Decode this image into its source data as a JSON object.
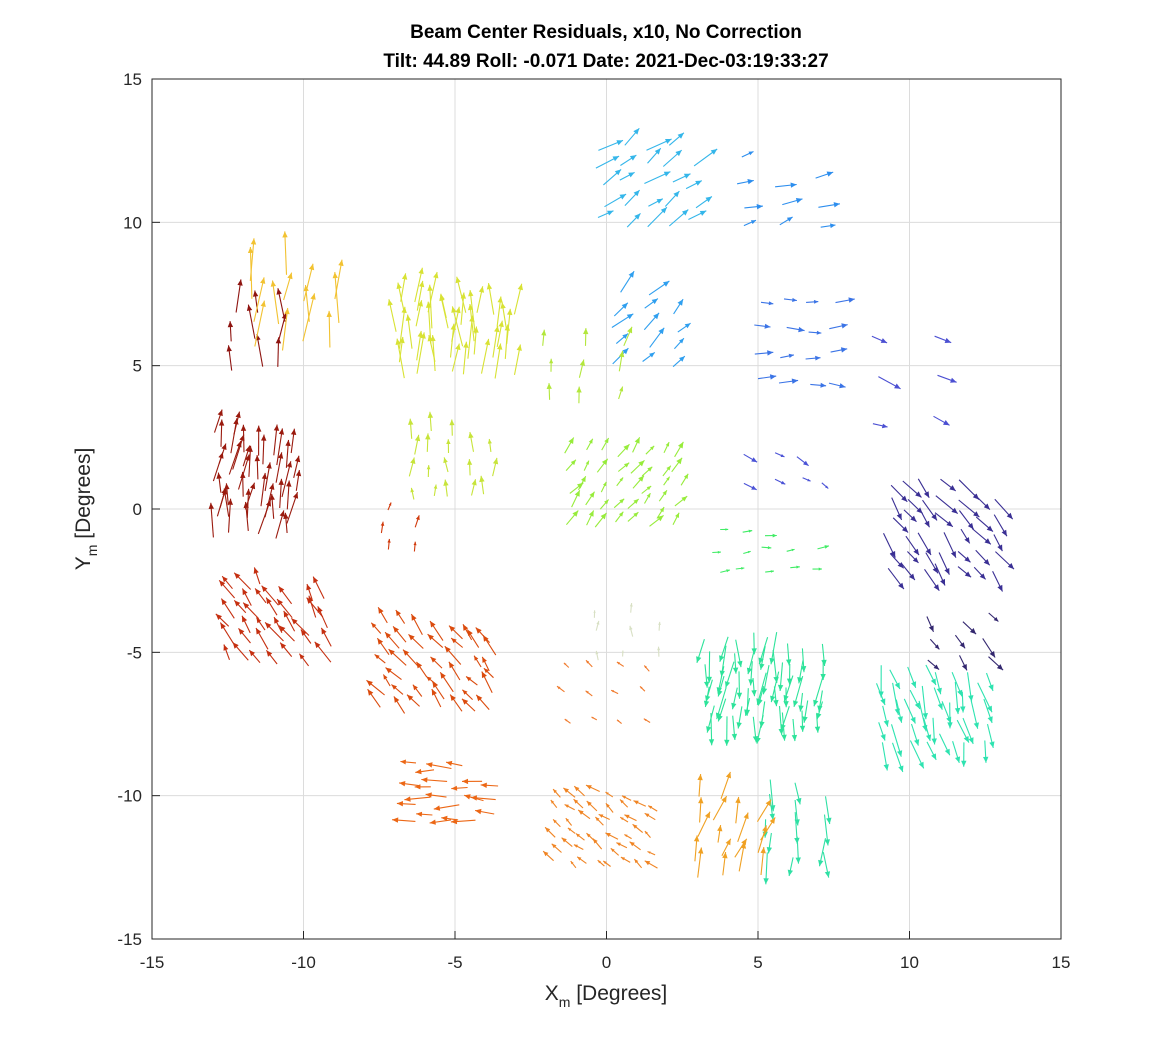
{
  "chart_data": {
    "type": "quiver",
    "title": "Beam Center Residuals, x10, No Correction",
    "subtitle": "Tilt: 44.89  Roll: -0.071  Date: 2021-Dec-03:19:33:27",
    "xlabel": {
      "main": "X",
      "sub": "m",
      "rest": " [Degrees]"
    },
    "ylabel": {
      "main": "Y",
      "sub": "m",
      "rest": " [Degrees]"
    },
    "xlim": [
      -15,
      15
    ],
    "ylim": [
      -15,
      15
    ],
    "xticks": [
      "-15",
      "-10",
      "-5",
      "0",
      "5",
      "10",
      "15"
    ],
    "yticks": [
      "-15",
      "-10",
      "-5",
      "0",
      "5",
      "10",
      "15"
    ],
    "grid": true,
    "scale_note": "x10",
    "arrow_groups": [
      {
        "color": "#9a1a0e",
        "center": [
          -11.6,
          0.8
        ],
        "count": 44,
        "spread": [
          1.2,
          1.7
        ],
        "vector": [
          0.08,
          1.0
        ]
      },
      {
        "color": "#8e1410",
        "center": [
          -11.5,
          5.8
        ],
        "count": 9,
        "spread": [
          0.8,
          0.9
        ],
        "vector": [
          0.0,
          1.0
        ]
      },
      {
        "color": "#f2c231",
        "center": [
          -10.3,
          6.9
        ],
        "count": 14,
        "spread": [
          1.3,
          1.2
        ],
        "vector": [
          0.04,
          1.4
        ]
      },
      {
        "color": "#c52f10",
        "center": [
          -10.8,
          -4.0
        ],
        "count": 38,
        "spread": [
          1.6,
          1.3
        ],
        "vector": [
          -0.35,
          0.6
        ]
      },
      {
        "color": "#d8e234",
        "center": [
          -5.0,
          6.0
        ],
        "count": 42,
        "spread": [
          1.8,
          1.3
        ],
        "vector": [
          0.0,
          1.2
        ]
      },
      {
        "color": "#c7e43a",
        "center": [
          -5.2,
          1.5
        ],
        "count": 18,
        "spread": [
          1.3,
          1.1
        ],
        "vector": [
          0.0,
          0.55
        ]
      },
      {
        "color": "#d13a0c",
        "center": [
          -6.8,
          -0.8
        ],
        "count": 5,
        "spread": [
          0.5,
          0.6
        ],
        "vector": [
          0.1,
          0.35
        ]
      },
      {
        "color": "#db4b0d",
        "center": [
          -5.5,
          -5.5
        ],
        "count": 44,
        "spread": [
          1.8,
          1.5
        ],
        "vector": [
          -0.4,
          0.5
        ]
      },
      {
        "color": "#ec6715",
        "center": [
          -5.0,
          -9.9
        ],
        "count": 22,
        "spread": [
          1.3,
          0.9
        ],
        "vector": [
          -0.7,
          0.05
        ]
      },
      {
        "color": "#34b6ea",
        "center": [
          1.3,
          11.3
        ],
        "count": 24,
        "spread": [
          1.5,
          1.3
        ],
        "vector": [
          0.6,
          0.45
        ]
      },
      {
        "color": "#2f9fef",
        "center": [
          1.3,
          6.3
        ],
        "count": 14,
        "spread": [
          1.0,
          1.2
        ],
        "vector": [
          0.45,
          0.5
        ]
      },
      {
        "color": "#b3e73c",
        "center": [
          -0.8,
          4.7
        ],
        "count": 9,
        "spread": [
          1.2,
          1.0
        ],
        "vector": [
          0.1,
          0.6
        ]
      },
      {
        "color": "#97ec3b",
        "center": [
          0.5,
          0.7
        ],
        "count": 40,
        "spread": [
          1.8,
          1.2
        ],
        "vector": [
          0.3,
          0.4
        ]
      },
      {
        "color": "#d8e0c4",
        "center": [
          0.7,
          -4.4
        ],
        "count": 8,
        "spread": [
          1.0,
          0.7
        ],
        "vector": [
          0.0,
          0.3
        ]
      },
      {
        "color": "#f07a2c",
        "center": [
          0.0,
          -6.5
        ],
        "count": 12,
        "spread": [
          1.3,
          1.0
        ],
        "vector": [
          -0.2,
          0.15
        ]
      },
      {
        "color": "#f08423",
        "center": [
          0.0,
          -11.2
        ],
        "count": 46,
        "spread": [
          1.6,
          1.2
        ],
        "vector": [
          -0.3,
          0.25
        ]
      },
      {
        "color": "#2d8eee",
        "center": [
          5.7,
          11.0
        ],
        "count": 10,
        "spread": [
          1.3,
          1.2
        ],
        "vector": [
          0.55,
          0.2
        ]
      },
      {
        "color": "#3b74e6",
        "center": [
          6.2,
          5.8
        ],
        "count": 16,
        "spread": [
          1.2,
          1.4
        ],
        "vector": [
          0.5,
          0.0
        ]
      },
      {
        "color": "#4a52d6",
        "center": [
          5.9,
          1.5
        ],
        "count": 7,
        "spread": [
          1.2,
          0.5
        ],
        "vector": [
          0.35,
          -0.2
        ]
      },
      {
        "color": "#40ec65",
        "center": [
          5.2,
          -1.5
        ],
        "count": 13,
        "spread": [
          1.6,
          0.7
        ],
        "vector": [
          0.3,
          0.05
        ]
      },
      {
        "color": "#2de39a",
        "center": [
          5.2,
          -5.8
        ],
        "count": 60,
        "spread": [
          1.8,
          1.4
        ],
        "vector": [
          -0.05,
          -0.9
        ]
      },
      {
        "color": "#2fe0a4",
        "center": [
          6.2,
          -10.7
        ],
        "count": 14,
        "spread": [
          0.9,
          1.3
        ],
        "vector": [
          0.0,
          -0.9
        ]
      },
      {
        "color": "#f0a123",
        "center": [
          4.0,
          -11.5
        ],
        "count": 18,
        "spread": [
          1.0,
          1.3
        ],
        "vector": [
          0.25,
          0.8
        ]
      },
      {
        "color": "#4b4fd2",
        "center": [
          9.9,
          4.6
        ],
        "count": 6,
        "spread": [
          1.0,
          1.5
        ],
        "vector": [
          0.6,
          -0.3
        ]
      },
      {
        "color": "#3a2f94",
        "center": [
          11.0,
          -0.5
        ],
        "count": 40,
        "spread": [
          1.7,
          1.5
        ],
        "vector": [
          0.45,
          -0.6
        ]
      },
      {
        "color": "#33276f",
        "center": [
          11.6,
          -4.5
        ],
        "count": 9,
        "spread": [
          0.9,
          0.7
        ],
        "vector": [
          0.35,
          -0.5
        ]
      },
      {
        "color": "#2ee3b0",
        "center": [
          10.7,
          -6.8
        ],
        "count": 40,
        "spread": [
          1.7,
          1.2
        ],
        "vector": [
          0.2,
          -0.9
        ]
      }
    ]
  }
}
